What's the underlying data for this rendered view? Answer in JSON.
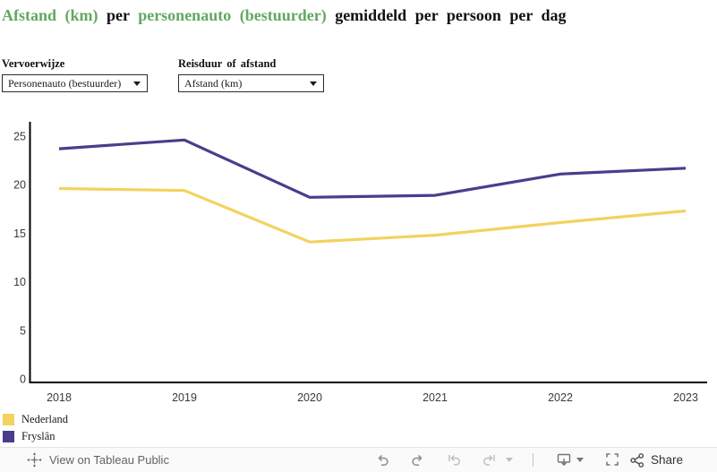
{
  "title": {
    "part1": "Afstand (km)",
    "part2": " per ",
    "part3": "personenauto (bestuurder)",
    "part4": " gemiddeld per persoon per dag"
  },
  "filters": [
    {
      "label": "Vervoerwijze",
      "value": "Personenauto (bestuurder)"
    },
    {
      "label": "Reisduur of afstand",
      "value": "Afstand (km)"
    }
  ],
  "chart_data": {
    "type": "line",
    "title": "Afstand (km) per personenauto (bestuurder) gemiddeld per persoon per dag",
    "x": [
      "2018",
      "2019",
      "2020",
      "2021",
      "2022",
      "2023"
    ],
    "series": [
      {
        "name": "Nederland",
        "color": "#F3D25F",
        "values": [
          19.6,
          19.4,
          14.1,
          14.8,
          16.1,
          17.3
        ]
      },
      {
        "name": "Fryslân",
        "color": "#483E8C",
        "values": [
          23.7,
          24.6,
          18.7,
          18.9,
          21.1,
          21.7
        ]
      }
    ],
    "xlabel": "",
    "ylabel": "",
    "ylim": [
      0,
      25
    ],
    "yticks": [
      0,
      5,
      10,
      15,
      20,
      25
    ],
    "grid": false,
    "legend_position": "bottom-left"
  },
  "toolbar": {
    "view_on_text": "View on Tableau Public",
    "share_label": "Share",
    "icons": [
      "tableau-logo-icon",
      "undo-icon",
      "redo-icon",
      "reset-icon",
      "refresh-icon",
      "chevron-down-icon",
      "download-device-icon",
      "chevron-down-icon",
      "fullscreen-icon",
      "share-icon"
    ]
  },
  "colors": {
    "title_accent_green": "#61A85F",
    "axis_black": "#000000",
    "nederland_yellow": "#F3D25F",
    "fryslan_purple": "#483E8C",
    "toolbar_bg": "#FAFAFA"
  }
}
